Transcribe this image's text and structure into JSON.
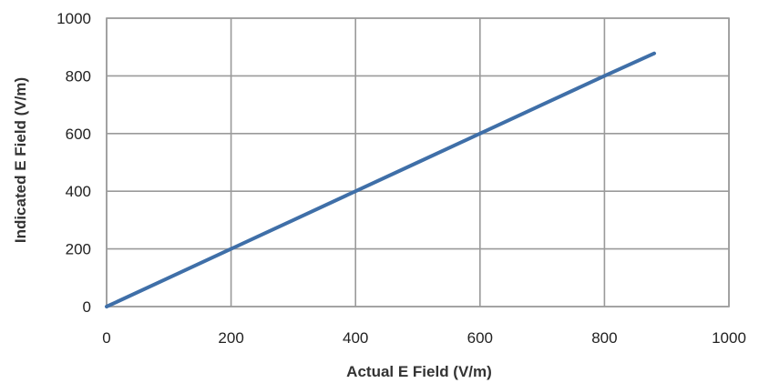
{
  "chart_data": {
    "type": "line",
    "title": "",
    "xlabel": "Actual E Field (V/m)",
    "ylabel": "Indicated E Field (V/m)",
    "xlim": [
      0,
      1000
    ],
    "ylim": [
      0,
      1000
    ],
    "x_ticks": [
      0,
      200,
      400,
      600,
      800,
      1000
    ],
    "y_ticks": [
      0,
      200,
      400,
      600,
      800,
      1000
    ],
    "grid": true,
    "legend": "none",
    "series": [
      {
        "color": "#3f6fa8",
        "x": [
          0,
          100,
          200,
          300,
          400,
          500,
          600,
          700,
          800,
          880
        ],
        "y": [
          0,
          100,
          200,
          300,
          400,
          500,
          600,
          700,
          800,
          878
        ]
      }
    ]
  }
}
